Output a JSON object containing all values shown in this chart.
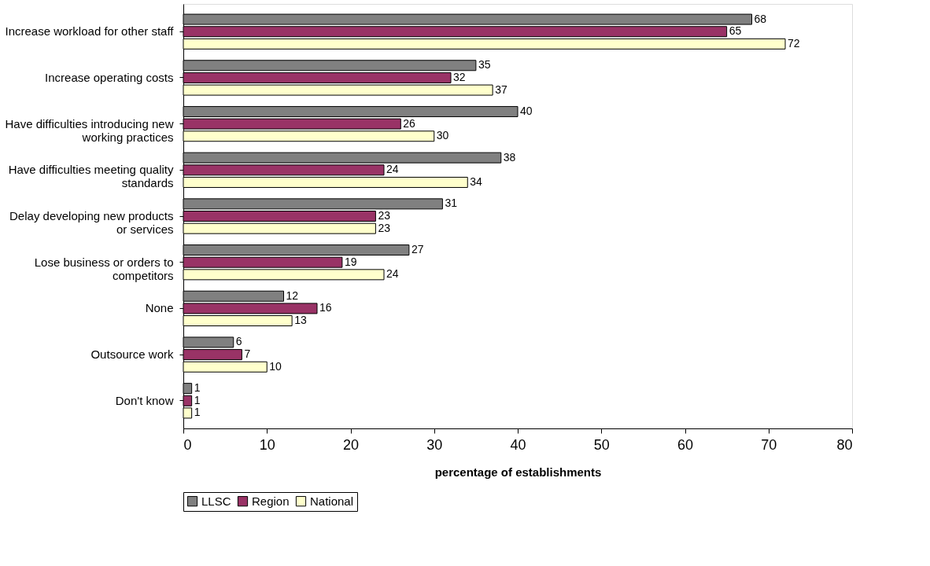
{
  "chart_data": {
    "type": "bar",
    "orientation": "horizontal",
    "xlabel": "percentage of establishments",
    "categories": [
      "Increase workload for other staff",
      "Increase operating costs",
      "Have difficulties introducing new\nworking practices",
      "Have difficulties meeting quality\nstandards",
      "Delay developing new products\nor services",
      "Lose business or orders to\ncompetitors",
      "None",
      "Outsource work",
      "Don't know"
    ],
    "series": [
      {
        "name": "LLSC",
        "color": "#808080",
        "values": [
          68,
          35,
          40,
          38,
          31,
          27,
          12,
          6,
          1
        ]
      },
      {
        "name": "Region",
        "color": "#993366",
        "values": [
          65,
          32,
          26,
          24,
          23,
          19,
          16,
          7,
          1
        ]
      },
      {
        "name": "National",
        "color": "#ffffcc",
        "values": [
          72,
          37,
          30,
          34,
          23,
          24,
          13,
          10,
          1
        ]
      }
    ],
    "xlim": [
      0,
      80
    ],
    "xticks": [
      0,
      10,
      20,
      30,
      40,
      50,
      60,
      70,
      80
    ],
    "data_labels": true,
    "legend": "bottom",
    "grid": false
  }
}
